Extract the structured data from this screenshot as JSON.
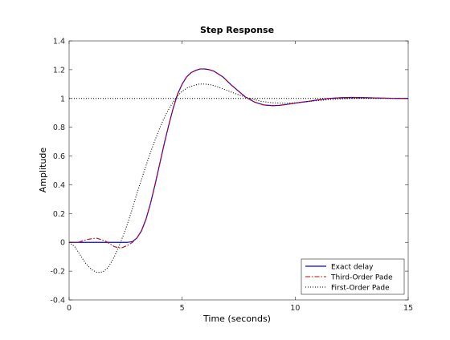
{
  "chart_data": {
    "type": "line",
    "title": "Step Response",
    "xlabel": "Time (seconds)",
    "ylabel": "Amplitude",
    "xlim": [
      0,
      15
    ],
    "ylim": [
      -0.4,
      1.4
    ],
    "xticks": [
      0,
      5,
      10,
      15
    ],
    "yticks": [
      -0.4,
      -0.2,
      0,
      0.2,
      0.4,
      0.6,
      0.8,
      1,
      1.2,
      1.4
    ],
    "grid": false,
    "legend_location": "bottom-right",
    "reference_line": {
      "y": 1,
      "style": "dotted",
      "color": "#000000"
    },
    "series": [
      {
        "name": "Exact delay",
        "color": "#0000ff",
        "style": "solid",
        "x": [
          0,
          2.6,
          2.8,
          3.0,
          3.2,
          3.4,
          3.6,
          3.8,
          4.0,
          4.2,
          4.4,
          4.6,
          4.8,
          5.0,
          5.2,
          5.4,
          5.6,
          5.8,
          6.0,
          6.2,
          6.4,
          6.6,
          6.8,
          7.0,
          7.2,
          7.5,
          7.8,
          8.2,
          8.6,
          9.0,
          9.3,
          9.6,
          9.9,
          10.2,
          10.6,
          11.0,
          11.5,
          12.0,
          12.5,
          13.0,
          13.5,
          14.0,
          14.5,
          15.0
        ],
        "y": [
          0,
          0,
          0.005,
          0.03,
          0.08,
          0.16,
          0.27,
          0.4,
          0.54,
          0.68,
          0.81,
          0.93,
          1.03,
          1.1,
          1.15,
          1.18,
          1.195,
          1.205,
          1.205,
          1.2,
          1.19,
          1.17,
          1.15,
          1.12,
          1.09,
          1.05,
          1.01,
          0.975,
          0.955,
          0.95,
          0.952,
          0.958,
          0.965,
          0.972,
          0.98,
          0.99,
          1.0,
          1.005,
          1.007,
          1.006,
          1.004,
          1.002,
          1.001,
          1.0
        ]
      },
      {
        "name": "Third-Order Pade",
        "color": "#cc0000",
        "style": "dashdot",
        "x": [
          0,
          0.4,
          0.8,
          1.2,
          1.6,
          2.0,
          2.3,
          2.6,
          2.8,
          3.0,
          3.2,
          3.4,
          3.6,
          3.8,
          4.0,
          4.2,
          4.4,
          4.6,
          4.8,
          5.0,
          5.2,
          5.4,
          5.6,
          5.8,
          6.0,
          6.2,
          6.4,
          6.6,
          6.8,
          7.0,
          7.2,
          7.5,
          7.8,
          8.2,
          8.6,
          9.0,
          9.3,
          9.6,
          9.9,
          10.2,
          10.6,
          11.0,
          11.5,
          12.0,
          12.5,
          13.0,
          13.5,
          14.0,
          14.5,
          15.0
        ],
        "y": [
          0,
          0.0,
          0.02,
          0.03,
          0.01,
          -0.03,
          -0.04,
          -0.02,
          0.0,
          0.03,
          0.08,
          0.16,
          0.27,
          0.4,
          0.54,
          0.68,
          0.81,
          0.93,
          1.03,
          1.1,
          1.15,
          1.18,
          1.195,
          1.205,
          1.205,
          1.2,
          1.19,
          1.17,
          1.15,
          1.12,
          1.09,
          1.05,
          1.01,
          0.975,
          0.955,
          0.95,
          0.952,
          0.958,
          0.965,
          0.972,
          0.98,
          0.99,
          1.0,
          1.005,
          1.007,
          1.006,
          1.004,
          1.002,
          1.001,
          1.0
        ]
      },
      {
        "name": "First-Order Pade",
        "color": "#000000",
        "style": "dotted",
        "x": [
          0,
          0.25,
          0.5,
          0.75,
          1.0,
          1.25,
          1.5,
          1.75,
          2.0,
          2.25,
          2.5,
          2.75,
          3.0,
          3.25,
          3.5,
          3.75,
          4.0,
          4.25,
          4.5,
          4.75,
          5.0,
          5.25,
          5.5,
          5.75,
          6.0,
          6.25,
          6.5,
          6.75,
          7.0,
          7.25,
          7.5,
          8.0,
          8.5,
          9.0,
          9.5,
          10.0,
          10.5,
          11.0,
          11.5,
          12.0,
          12.5,
          13.0,
          14.0,
          15.0
        ],
        "y": [
          0,
          -0.03,
          -0.09,
          -0.15,
          -0.19,
          -0.21,
          -0.205,
          -0.17,
          -0.1,
          -0.01,
          0.09,
          0.21,
          0.34,
          0.46,
          0.58,
          0.69,
          0.79,
          0.88,
          0.95,
          1.01,
          1.05,
          1.075,
          1.09,
          1.1,
          1.1,
          1.095,
          1.085,
          1.07,
          1.055,
          1.04,
          1.025,
          1.0,
          0.98,
          0.97,
          0.967,
          0.97,
          0.977,
          0.985,
          0.992,
          0.997,
          1.0,
          1.002,
          1.001,
          1.0
        ]
      }
    ]
  }
}
